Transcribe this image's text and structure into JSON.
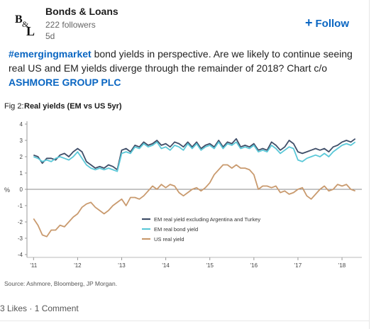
{
  "post": {
    "author": "Bonds & Loans",
    "followers": "222 followers",
    "age": "5d",
    "follow_label": "Follow",
    "hashtag": "#emergingmarket",
    "text_part1": " bond yields in perspective. Are we likely to continue seeing real US and EM yields diverge through the remainder of 2018? Chart c/o ",
    "company": "ASHMORE GROUP PLC"
  },
  "footer": {
    "likes": "3 Likes",
    "comments": "1 Comment",
    "separator": " · "
  },
  "colors": {
    "link": "#0a66c2",
    "em_series": "#3f4e68",
    "em_bond": "#5bc8d8",
    "us_series": "#c99a6e"
  },
  "chart_data": {
    "type": "line",
    "fig_label": "Fig 2:",
    "title": "Real yields (EM vs US 5yr)",
    "ylabel": "%",
    "ylim": [
      -4,
      4
    ],
    "yticks": [
      "4",
      "3",
      "2",
      "1",
      "0",
      "-1",
      "-2",
      "-3",
      "-4"
    ],
    "xtick_labels": [
      "'11",
      "'12",
      "'13",
      "'14",
      "'15",
      "'16",
      "'17",
      "'18"
    ],
    "xtick_values": [
      2011,
      2012,
      2013,
      2014,
      2015,
      2016,
      2017,
      2018
    ],
    "source": "Source: Ashmore, Bloomberg, JP Morgan.",
    "series": [
      {
        "name": "EM real yield excluding Argentina and Turkey",
        "color": "#3f4e68",
        "points": [
          [
            2011.0,
            2.1
          ],
          [
            2011.1,
            2.0
          ],
          [
            2011.2,
            1.6
          ],
          [
            2011.3,
            1.9
          ],
          [
            2011.4,
            1.9
          ],
          [
            2011.5,
            1.8
          ],
          [
            2011.6,
            2.1
          ],
          [
            2011.7,
            2.2
          ],
          [
            2011.8,
            2.0
          ],
          [
            2011.9,
            2.3
          ],
          [
            2012.0,
            2.5
          ],
          [
            2012.1,
            2.3
          ],
          [
            2012.2,
            1.7
          ],
          [
            2012.3,
            1.5
          ],
          [
            2012.4,
            1.3
          ],
          [
            2012.5,
            1.4
          ],
          [
            2012.6,
            1.3
          ],
          [
            2012.7,
            1.5
          ],
          [
            2012.8,
            1.4
          ],
          [
            2012.9,
            1.2
          ],
          [
            2013.0,
            2.4
          ],
          [
            2013.1,
            2.5
          ],
          [
            2013.2,
            2.3
          ],
          [
            2013.3,
            2.7
          ],
          [
            2013.4,
            2.6
          ],
          [
            2013.5,
            2.9
          ],
          [
            2013.6,
            2.7
          ],
          [
            2013.7,
            2.8
          ],
          [
            2013.8,
            3.0
          ],
          [
            2013.9,
            2.7
          ],
          [
            2014.0,
            2.8
          ],
          [
            2014.1,
            2.6
          ],
          [
            2014.2,
            2.9
          ],
          [
            2014.3,
            2.8
          ],
          [
            2014.4,
            2.6
          ],
          [
            2014.5,
            2.9
          ],
          [
            2014.6,
            2.6
          ],
          [
            2014.7,
            2.9
          ],
          [
            2014.8,
            2.5
          ],
          [
            2014.9,
            2.7
          ],
          [
            2015.0,
            2.8
          ],
          [
            2015.1,
            2.6
          ],
          [
            2015.2,
            3.0
          ],
          [
            2015.3,
            2.6
          ],
          [
            2015.4,
            2.9
          ],
          [
            2015.5,
            2.8
          ],
          [
            2015.6,
            3.1
          ],
          [
            2015.7,
            2.6
          ],
          [
            2015.8,
            2.7
          ],
          [
            2015.9,
            2.6
          ],
          [
            2016.0,
            2.8
          ],
          [
            2016.1,
            2.4
          ],
          [
            2016.2,
            2.5
          ],
          [
            2016.3,
            2.4
          ],
          [
            2016.4,
            2.9
          ],
          [
            2016.5,
            2.7
          ],
          [
            2016.6,
            2.4
          ],
          [
            2016.7,
            2.6
          ],
          [
            2016.8,
            3.0
          ],
          [
            2016.9,
            2.8
          ],
          [
            2017.0,
            2.3
          ],
          [
            2017.1,
            2.2
          ],
          [
            2017.2,
            2.3
          ],
          [
            2017.3,
            2.4
          ],
          [
            2017.4,
            2.5
          ],
          [
            2017.5,
            2.4
          ],
          [
            2017.6,
            2.5
          ],
          [
            2017.7,
            2.3
          ],
          [
            2017.8,
            2.6
          ],
          [
            2017.9,
            2.7
          ],
          [
            2018.0,
            2.9
          ],
          [
            2018.1,
            3.0
          ],
          [
            2018.2,
            2.9
          ],
          [
            2018.3,
            3.1
          ]
        ]
      },
      {
        "name": "EM real bond yield",
        "color": "#5bc8d8",
        "points": [
          [
            2011.0,
            2.0
          ],
          [
            2011.1,
            1.9
          ],
          [
            2011.2,
            1.7
          ],
          [
            2011.3,
            1.8
          ],
          [
            2011.4,
            1.7
          ],
          [
            2011.5,
            1.9
          ],
          [
            2011.6,
            2.0
          ],
          [
            2011.7,
            1.9
          ],
          [
            2011.8,
            1.8
          ],
          [
            2011.9,
            2.0
          ],
          [
            2012.0,
            2.3
          ],
          [
            2012.1,
            1.9
          ],
          [
            2012.2,
            1.5
          ],
          [
            2012.3,
            1.3
          ],
          [
            2012.4,
            1.2
          ],
          [
            2012.5,
            1.3
          ],
          [
            2012.6,
            1.2
          ],
          [
            2012.7,
            1.3
          ],
          [
            2012.8,
            1.2
          ],
          [
            2012.9,
            1.1
          ],
          [
            2013.0,
            2.2
          ],
          [
            2013.1,
            2.3
          ],
          [
            2013.2,
            2.2
          ],
          [
            2013.3,
            2.6
          ],
          [
            2013.4,
            2.5
          ],
          [
            2013.5,
            2.8
          ],
          [
            2013.6,
            2.6
          ],
          [
            2013.7,
            2.7
          ],
          [
            2013.8,
            2.9
          ],
          [
            2013.9,
            2.5
          ],
          [
            2014.0,
            2.6
          ],
          [
            2014.1,
            2.4
          ],
          [
            2014.2,
            2.7
          ],
          [
            2014.3,
            2.6
          ],
          [
            2014.4,
            2.4
          ],
          [
            2014.5,
            2.8
          ],
          [
            2014.6,
            2.5
          ],
          [
            2014.7,
            2.8
          ],
          [
            2014.8,
            2.4
          ],
          [
            2014.9,
            2.6
          ],
          [
            2015.0,
            2.7
          ],
          [
            2015.1,
            2.5
          ],
          [
            2015.2,
            2.9
          ],
          [
            2015.3,
            2.5
          ],
          [
            2015.4,
            2.8
          ],
          [
            2015.5,
            2.7
          ],
          [
            2015.6,
            2.9
          ],
          [
            2015.7,
            2.5
          ],
          [
            2015.8,
            2.6
          ],
          [
            2015.9,
            2.5
          ],
          [
            2016.0,
            2.7
          ],
          [
            2016.1,
            2.3
          ],
          [
            2016.2,
            2.4
          ],
          [
            2016.3,
            2.3
          ],
          [
            2016.4,
            2.7
          ],
          [
            2016.5,
            2.5
          ],
          [
            2016.6,
            2.2
          ],
          [
            2016.7,
            2.4
          ],
          [
            2016.8,
            2.6
          ],
          [
            2016.9,
            2.5
          ],
          [
            2017.0,
            1.8
          ],
          [
            2017.1,
            1.7
          ],
          [
            2017.2,
            1.9
          ],
          [
            2017.3,
            2.0
          ],
          [
            2017.4,
            2.1
          ],
          [
            2017.5,
            2.0
          ],
          [
            2017.6,
            2.2
          ],
          [
            2017.7,
            2.0
          ],
          [
            2017.8,
            2.3
          ],
          [
            2017.9,
            2.5
          ],
          [
            2018.0,
            2.7
          ],
          [
            2018.1,
            2.8
          ],
          [
            2018.2,
            2.7
          ],
          [
            2018.3,
            2.9
          ]
        ]
      },
      {
        "name": "US real yield",
        "color": "#c99a6e",
        "points": [
          [
            2011.0,
            -1.8
          ],
          [
            2011.1,
            -2.2
          ],
          [
            2011.2,
            -2.8
          ],
          [
            2011.3,
            -2.9
          ],
          [
            2011.4,
            -2.5
          ],
          [
            2011.5,
            -2.5
          ],
          [
            2011.6,
            -2.2
          ],
          [
            2011.7,
            -2.3
          ],
          [
            2011.8,
            -2.0
          ],
          [
            2011.9,
            -1.7
          ],
          [
            2012.0,
            -1.5
          ],
          [
            2012.1,
            -1.1
          ],
          [
            2012.2,
            -0.9
          ],
          [
            2012.3,
            -0.8
          ],
          [
            2012.4,
            -1.1
          ],
          [
            2012.5,
            -1.3
          ],
          [
            2012.6,
            -1.5
          ],
          [
            2012.7,
            -1.3
          ],
          [
            2012.8,
            -1.0
          ],
          [
            2012.9,
            -0.8
          ],
          [
            2013.0,
            -0.6
          ],
          [
            2013.1,
            -1.0
          ],
          [
            2013.2,
            -0.5
          ],
          [
            2013.3,
            -0.5
          ],
          [
            2013.4,
            -0.6
          ],
          [
            2013.5,
            -0.4
          ],
          [
            2013.6,
            -0.1
          ],
          [
            2013.7,
            0.2
          ],
          [
            2013.8,
            0.0
          ],
          [
            2013.9,
            0.3
          ],
          [
            2014.0,
            0.1
          ],
          [
            2014.1,
            0.3
          ],
          [
            2014.2,
            0.2
          ],
          [
            2014.3,
            -0.2
          ],
          [
            2014.4,
            -0.4
          ],
          [
            2014.5,
            -0.2
          ],
          [
            2014.6,
            0.0
          ],
          [
            2014.7,
            0.1
          ],
          [
            2014.8,
            -0.1
          ],
          [
            2014.9,
            0.1
          ],
          [
            2015.0,
            0.4
          ],
          [
            2015.1,
            0.9
          ],
          [
            2015.2,
            1.2
          ],
          [
            2015.3,
            1.5
          ],
          [
            2015.4,
            1.5
          ],
          [
            2015.5,
            1.3
          ],
          [
            2015.6,
            1.5
          ],
          [
            2015.7,
            1.3
          ],
          [
            2015.8,
            1.3
          ],
          [
            2015.9,
            1.2
          ],
          [
            2016.0,
            0.9
          ],
          [
            2016.1,
            0.0
          ],
          [
            2016.2,
            0.2
          ],
          [
            2016.3,
            0.2
          ],
          [
            2016.4,
            0.1
          ],
          [
            2016.5,
            0.2
          ],
          [
            2016.6,
            -0.2
          ],
          [
            2016.7,
            -0.1
          ],
          [
            2016.8,
            -0.3
          ],
          [
            2016.9,
            -0.2
          ],
          [
            2017.0,
            0.0
          ],
          [
            2017.1,
            0.1
          ],
          [
            2017.2,
            -0.4
          ],
          [
            2017.3,
            -0.6
          ],
          [
            2017.4,
            -0.3
          ],
          [
            2017.5,
            0.0
          ],
          [
            2017.6,
            0.2
          ],
          [
            2017.7,
            -0.1
          ],
          [
            2017.8,
            0.0
          ],
          [
            2017.9,
            0.3
          ],
          [
            2018.0,
            0.2
          ],
          [
            2018.1,
            0.3
          ],
          [
            2018.2,
            0.0
          ],
          [
            2018.3,
            -0.1
          ]
        ]
      }
    ]
  }
}
